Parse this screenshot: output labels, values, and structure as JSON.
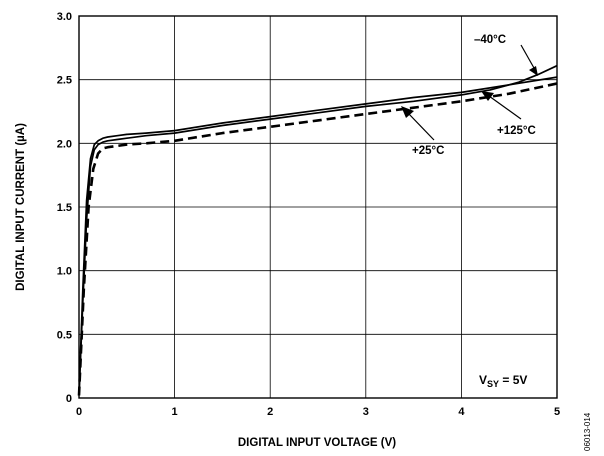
{
  "chart_data": {
    "type": "line",
    "xlabel": "DIGITAL INPUT VOLTAGE (V)",
    "ylabel": "DIGITAL INPUT CURRENT (µA)",
    "xlim": [
      0,
      5
    ],
    "ylim": [
      0,
      3.0
    ],
    "x_ticks": [
      0,
      1,
      2,
      3,
      4,
      5
    ],
    "x_tick_labels": [
      "0",
      "1",
      "2",
      "3",
      "4",
      "5"
    ],
    "y_ticks": [
      0,
      0.5,
      1.0,
      1.5,
      2.0,
      2.5,
      3.0
    ],
    "y_tick_labels": [
      "0",
      "0.5",
      "1.0",
      "1.5",
      "2.0",
      "2.5",
      "3.0"
    ],
    "grid": true,
    "series": [
      {
        "name": "–40°C",
        "style": "solid",
        "x": [
          0,
          0.04,
          0.08,
          0.12,
          0.16,
          0.2,
          0.25,
          0.3,
          0.4,
          0.5,
          0.7,
          1.0,
          1.5,
          2.0,
          2.5,
          3.0,
          3.5,
          4.0,
          4.3,
          4.6,
          4.8,
          5.0
        ],
        "y": [
          0.02,
          0.75,
          1.4,
          1.82,
          1.95,
          1.99,
          2.01,
          2.02,
          2.03,
          2.04,
          2.06,
          2.08,
          2.14,
          2.19,
          2.24,
          2.29,
          2.33,
          2.38,
          2.42,
          2.48,
          2.54,
          2.61
        ]
      },
      {
        "name": "+25°C",
        "style": "solid",
        "x": [
          0,
          0.04,
          0.08,
          0.12,
          0.16,
          0.2,
          0.25,
          0.3,
          0.4,
          0.5,
          0.7,
          1.0,
          1.5,
          2.0,
          2.5,
          3.0,
          3.5,
          4.0,
          4.5,
          5.0
        ],
        "y": [
          0.02,
          0.85,
          1.55,
          1.88,
          1.99,
          2.02,
          2.04,
          2.05,
          2.06,
          2.07,
          2.08,
          2.1,
          2.16,
          2.21,
          2.26,
          2.31,
          2.36,
          2.4,
          2.46,
          2.52
        ]
      },
      {
        "name": "+125°C",
        "style": "dashed",
        "x": [
          0,
          0.05,
          0.1,
          0.15,
          0.2,
          0.25,
          0.3,
          0.4,
          0.5,
          0.7,
          1.0,
          1.5,
          2.0,
          2.5,
          3.0,
          3.5,
          4.0,
          4.5,
          5.0
        ],
        "y": [
          0.02,
          0.85,
          1.5,
          1.8,
          1.92,
          1.96,
          1.97,
          1.98,
          1.99,
          2.0,
          2.02,
          2.08,
          2.13,
          2.18,
          2.23,
          2.28,
          2.33,
          2.39,
          2.47
        ]
      }
    ],
    "annotations": {
      "series_labels": [
        "–40°C",
        "+25°C",
        "+125°C"
      ],
      "condition": {
        "main": "V",
        "sub": "SY",
        "rest": " = 5V"
      },
      "figure_id": "06013-014"
    }
  }
}
